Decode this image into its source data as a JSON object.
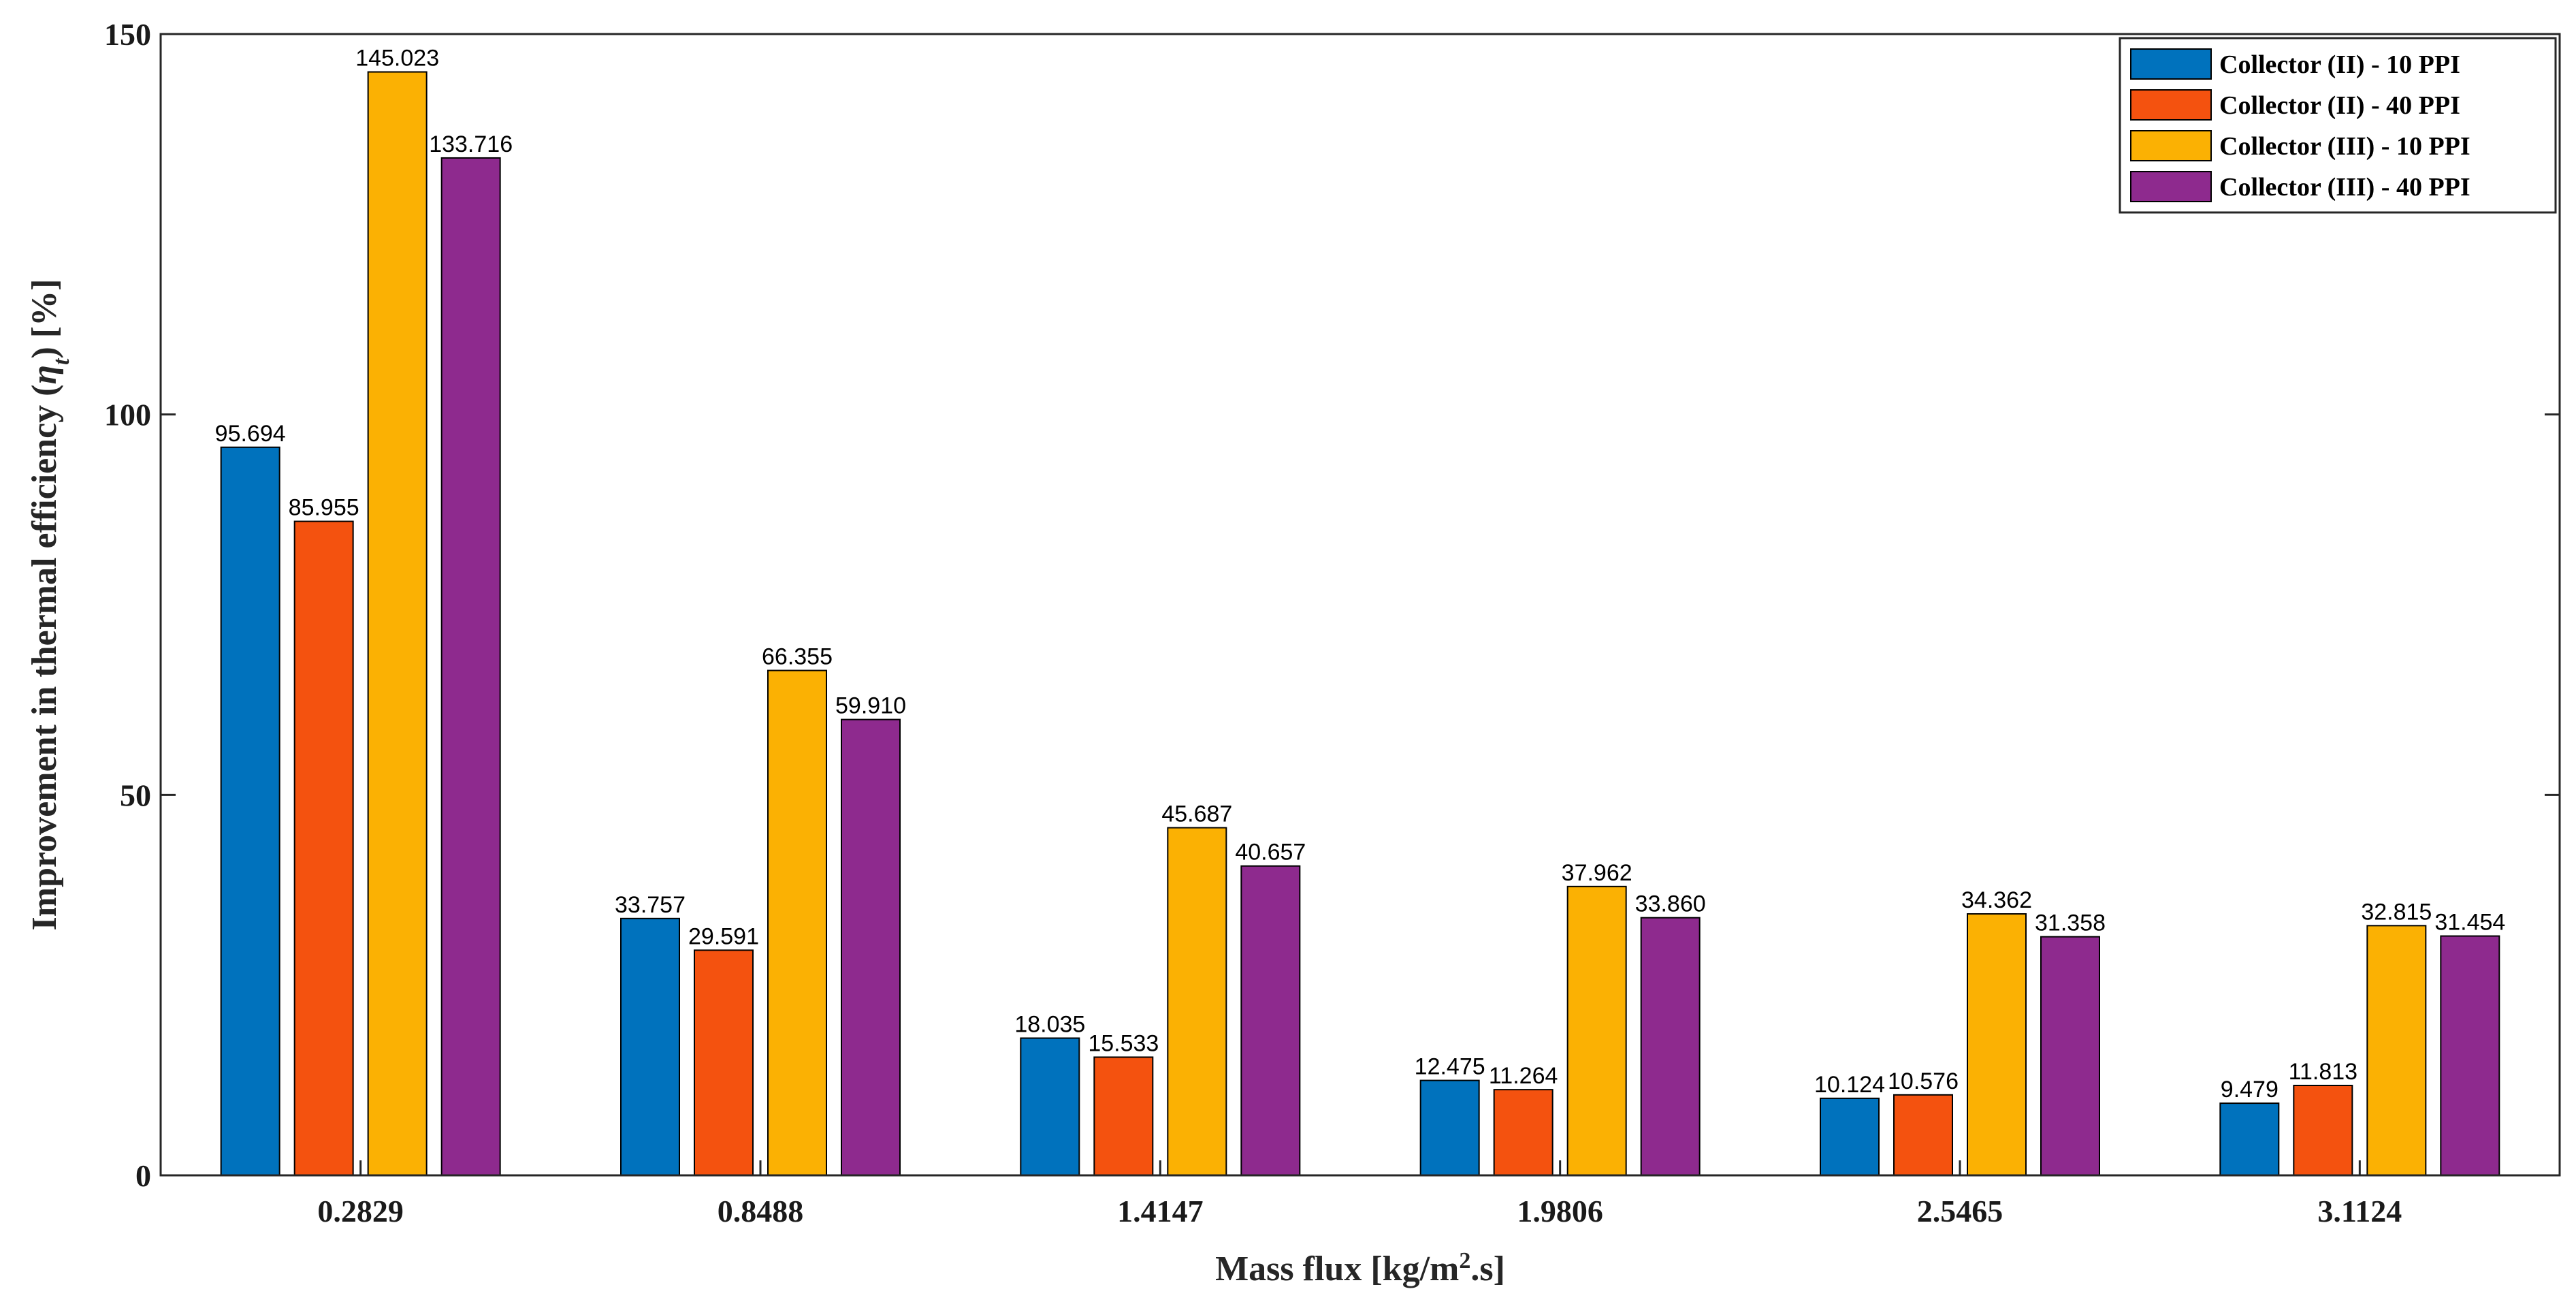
{
  "chart_data": {
    "type": "bar",
    "title": "",
    "xlabel": "Mass flux [kg/m",
    "xlabel_sup": "2",
    "xlabel_end": ".s]",
    "ylabel": "Improvement in thermal efficiency (",
    "ylabel_symbol": "η",
    "ylabel_sub": "t",
    "ylabel_end": ") [%]",
    "ylim": [
      0,
      150
    ],
    "yticks": [
      0,
      50,
      100,
      150
    ],
    "ytick_labels": [
      "0",
      "50",
      "100",
      "150"
    ],
    "grid": false,
    "legend_position": "top-right",
    "categories": [
      "0.2829",
      "0.8488",
      "1.4147",
      "1.9806",
      "2.5465",
      "3.1124"
    ],
    "series": [
      {
        "name": "Collector (II) - 10 PPI",
        "color": "#0072BD",
        "values": [
          95.694,
          33.757,
          18.035,
          12.475,
          10.124,
          9.479
        ],
        "labels": [
          "95.694",
          "33.757",
          "18.035",
          "12.475",
          "10.124",
          "9.479"
        ]
      },
      {
        "name": "Collector (II) - 40 PPI",
        "color": "#F4520F",
        "values": [
          85.955,
          29.591,
          15.533,
          11.264,
          10.576,
          11.813
        ],
        "labels": [
          "85.955",
          "29.591",
          "15.533",
          "11.264",
          "10.576",
          "11.813"
        ]
      },
      {
        "name": "Collector (III) - 10 PPI",
        "color": "#FBB103",
        "values": [
          145.023,
          66.355,
          45.687,
          37.962,
          34.362,
          32.815
        ],
        "labels": [
          "145.023",
          "66.355",
          "45.687",
          "37.962",
          "34.362",
          "32.815"
        ]
      },
      {
        "name": "Collector (III) - 40 PPI",
        "color": "#8E2A8E",
        "values": [
          133.716,
          59.91,
          40.657,
          33.86,
          31.358,
          31.454
        ],
        "labels": [
          "133.716",
          "59.910",
          "40.657",
          "33.860",
          "31.358",
          "31.454"
        ]
      }
    ]
  }
}
